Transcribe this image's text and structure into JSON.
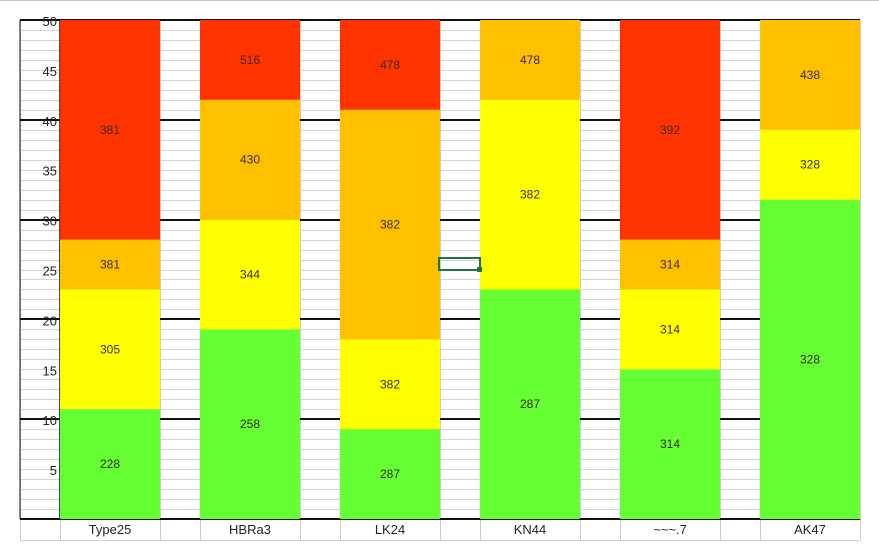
{
  "colors": {
    "red": "#ff3300",
    "orange": "#ffc000",
    "yellow": "#ffff00",
    "green": "#66ff33",
    "cell_selection": "#217346"
  },
  "chart_data": {
    "type": "bar",
    "stacked": true,
    "ylim": [
      0,
      50
    ],
    "yticks": [
      "5",
      "10",
      "15",
      "20",
      "25",
      "30",
      "35",
      "40",
      "45",
      "50"
    ],
    "grid": true,
    "categories": [
      "Type25",
      "HBRa3",
      "LK24",
      "KN44",
      "AK47",
      "AK47"
    ],
    "category_labels": [
      "Type25",
      "HBRa3",
      "LK24",
      "KN44",
      "~~~.7",
      "AK47"
    ],
    "bars": [
      {
        "category": "Type25",
        "segments": [
          {
            "from": 0,
            "to": 11,
            "color": "green",
            "label": "228"
          },
          {
            "from": 11,
            "to": 23,
            "color": "yellow",
            "label": "305"
          },
          {
            "from": 23,
            "to": 28,
            "color": "orange",
            "label": "381"
          },
          {
            "from": 28,
            "to": 50,
            "color": "red",
            "label": "381"
          }
        ]
      },
      {
        "category": "HBRa3",
        "segments": [
          {
            "from": 0,
            "to": 19,
            "color": "green",
            "label": "258"
          },
          {
            "from": 19,
            "to": 30,
            "color": "yellow",
            "label": "344"
          },
          {
            "from": 30,
            "to": 42,
            "color": "orange",
            "label": "430"
          },
          {
            "from": 42,
            "to": 50,
            "color": "red",
            "label": "516"
          }
        ]
      },
      {
        "category": "LK24",
        "segments": [
          {
            "from": 0,
            "to": 9,
            "color": "green",
            "label": "287"
          },
          {
            "from": 9,
            "to": 18,
            "color": "yellow",
            "label": "382"
          },
          {
            "from": 18,
            "to": 41,
            "color": "orange",
            "label": "382"
          },
          {
            "from": 41,
            "to": 50,
            "color": "red",
            "label": "478"
          }
        ]
      },
      {
        "category": "KN44",
        "segments": [
          {
            "from": 0,
            "to": 23,
            "color": "green",
            "label": "287"
          },
          {
            "from": 23,
            "to": 42,
            "color": "yellow",
            "label": "382"
          },
          {
            "from": 42,
            "to": 50,
            "color": "orange",
            "label": "478"
          }
        ]
      },
      {
        "category": "AK47",
        "segments": [
          {
            "from": 0,
            "to": 15,
            "color": "green",
            "label": "314"
          },
          {
            "from": 15,
            "to": 23,
            "color": "yellow",
            "label": "314"
          },
          {
            "from": 23,
            "to": 28,
            "color": "orange",
            "label": "314"
          },
          {
            "from": 28,
            "to": 50,
            "color": "red",
            "label": "392"
          }
        ]
      },
      {
        "category": "AK47",
        "segments": [
          {
            "from": 0,
            "to": 32,
            "color": "green",
            "label": "328"
          },
          {
            "from": 32,
            "to": 39,
            "color": "yellow",
            "label": "328"
          },
          {
            "from": 39,
            "to": 50,
            "color": "orange",
            "label": "438"
          }
        ]
      }
    ]
  }
}
